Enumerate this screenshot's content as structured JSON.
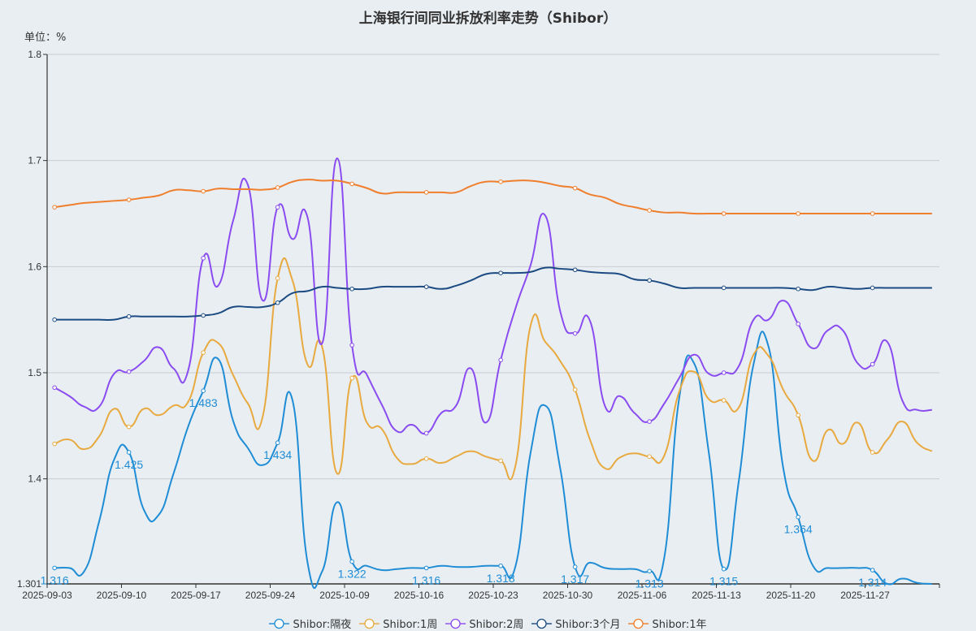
{
  "chart_data": {
    "type": "line",
    "title": "上海银行间同业拆放利率走势（Shibor）",
    "ylabel": "单位：%",
    "ylim": [
      1.301,
      1.8
    ],
    "yticks": [
      "1.301",
      "1.4",
      "1.5",
      "1.6",
      "1.7",
      "1.8"
    ],
    "xtick_labels": [
      "2025-09-03",
      "2025-09-10",
      "2025-09-17",
      "2025-09-24",
      "2025-10-09",
      "2025-10-16",
      "2025-10-23",
      "2025-10-30",
      "2025-11-06",
      "2025-11-13",
      "2025-11-20",
      "2025-11-27"
    ],
    "smooth": true,
    "grid": "horizontal",
    "legend": "bottom",
    "categories": [
      "2025-09-03",
      "2025-09-04",
      "2025-09-05",
      "2025-09-08",
      "2025-09-09",
      "2025-09-10",
      "2025-09-11",
      "2025-09-12",
      "2025-09-15",
      "2025-09-16",
      "2025-09-17",
      "2025-09-18",
      "2025-09-19",
      "2025-09-22",
      "2025-09-23",
      "2025-09-24",
      "2025-09-25",
      "2025-09-26",
      "2025-09-29",
      "2025-09-30",
      "2025-10-09",
      "2025-10-10",
      "2025-10-13",
      "2025-10-14",
      "2025-10-15",
      "2025-10-16",
      "2025-10-17",
      "2025-10-20",
      "2025-10-21",
      "2025-10-22",
      "2025-10-23",
      "2025-10-24",
      "2025-10-27",
      "2025-10-28",
      "2025-10-29",
      "2025-10-30",
      "2025-10-31",
      "2025-11-03",
      "2025-11-04",
      "2025-11-05",
      "2025-11-06",
      "2025-11-07",
      "2025-11-10",
      "2025-11-11",
      "2025-11-12",
      "2025-11-13",
      "2025-11-14",
      "2025-11-17",
      "2025-11-18",
      "2025-11-19",
      "2025-11-20",
      "2025-11-21",
      "2025-11-24",
      "2025-11-25",
      "2025-11-26",
      "2025-11-27",
      "2025-11-28",
      "2025-12-01",
      "2025-12-02",
      "2025-12-03"
    ],
    "series": [
      {
        "name": "Shibor:隔夜",
        "color": "#1f8dd6",
        "labels_shown": true,
        "values": [
          1.316,
          1.316,
          1.313,
          1.36,
          1.418,
          1.425,
          1.371,
          1.366,
          1.405,
          1.45,
          1.483,
          1.513,
          1.455,
          1.429,
          1.413,
          1.434,
          1.474,
          1.322,
          1.313,
          1.378,
          1.322,
          1.318,
          1.314,
          1.315,
          1.316,
          1.316,
          1.318,
          1.317,
          1.317,
          1.318,
          1.318,
          1.318,
          1.424,
          1.469,
          1.41,
          1.317,
          1.321,
          1.316,
          1.315,
          1.315,
          1.313,
          1.326,
          1.476,
          1.509,
          1.424,
          1.315,
          1.397,
          1.508,
          1.525,
          1.41,
          1.364,
          1.318,
          1.316,
          1.316,
          1.316,
          1.314,
          1.301,
          1.306,
          1.302,
          1.301
        ]
      },
      {
        "name": "Shibor:1周",
        "color": "#e8a93f",
        "values": [
          1.433,
          1.437,
          1.428,
          1.44,
          1.466,
          1.449,
          1.466,
          1.46,
          1.469,
          1.473,
          1.519,
          1.528,
          1.498,
          1.471,
          1.459,
          1.589,
          1.587,
          1.508,
          1.524,
          1.405,
          1.495,
          1.453,
          1.447,
          1.42,
          1.414,
          1.419,
          1.415,
          1.421,
          1.426,
          1.421,
          1.417,
          1.413,
          1.544,
          1.529,
          1.511,
          1.484,
          1.437,
          1.41,
          1.42,
          1.424,
          1.421,
          1.422,
          1.482,
          1.501,
          1.475,
          1.474,
          1.467,
          1.517,
          1.516,
          1.484,
          1.46,
          1.417,
          1.446,
          1.433,
          1.453,
          1.425,
          1.437,
          1.454,
          1.434,
          1.426
        ]
      },
      {
        "name": "Shibor:2周",
        "color": "#8a4cf0",
        "values": [
          1.486,
          1.478,
          1.468,
          1.468,
          1.499,
          1.501,
          1.511,
          1.524,
          1.504,
          1.503,
          1.608,
          1.582,
          1.643,
          1.677,
          1.568,
          1.656,
          1.626,
          1.647,
          1.528,
          1.702,
          1.526,
          1.498,
          1.47,
          1.445,
          1.451,
          1.443,
          1.462,
          1.469,
          1.504,
          1.453,
          1.512,
          1.561,
          1.601,
          1.648,
          1.558,
          1.537,
          1.549,
          1.469,
          1.478,
          1.462,
          1.454,
          1.471,
          1.495,
          1.517,
          1.499,
          1.5,
          1.506,
          1.55,
          1.55,
          1.568,
          1.546,
          1.523,
          1.54,
          1.54,
          1.509,
          1.508,
          1.529,
          1.474,
          1.465,
          1.465
        ]
      },
      {
        "name": "Shibor:3个月",
        "color": "#1b4b82",
        "values": [
          1.55,
          1.55,
          1.55,
          1.55,
          1.55,
          1.553,
          1.553,
          1.553,
          1.553,
          1.553,
          1.554,
          1.556,
          1.562,
          1.562,
          1.562,
          1.566,
          1.575,
          1.577,
          1.581,
          1.58,
          1.579,
          1.579,
          1.581,
          1.581,
          1.581,
          1.581,
          1.579,
          1.582,
          1.587,
          1.593,
          1.594,
          1.594,
          1.595,
          1.599,
          1.598,
          1.597,
          1.595,
          1.594,
          1.593,
          1.588,
          1.587,
          1.584,
          1.58,
          1.58,
          1.58,
          1.58,
          1.58,
          1.58,
          1.58,
          1.58,
          1.579,
          1.578,
          1.581,
          1.58,
          1.579,
          1.58,
          1.58,
          1.58,
          1.58,
          1.58
        ]
      },
      {
        "name": "Shibor:1年",
        "color": "#f07f2d",
        "values": [
          1.656,
          1.658,
          1.66,
          1.661,
          1.662,
          1.663,
          1.665,
          1.667,
          1.672,
          1.672,
          1.671,
          1.6735,
          1.673,
          1.673,
          1.6725,
          1.6745,
          1.68,
          1.682,
          1.681,
          1.681,
          1.678,
          1.674,
          1.669,
          1.67,
          1.67,
          1.67,
          1.67,
          1.67,
          1.676,
          1.68,
          1.68,
          1.681,
          1.681,
          1.679,
          1.676,
          1.674,
          1.668,
          1.665,
          1.659,
          1.656,
          1.653,
          1.651,
          1.651,
          1.65,
          1.65,
          1.65,
          1.65,
          1.65,
          1.65,
          1.65,
          1.65,
          1.65,
          1.65,
          1.65,
          1.65,
          1.65,
          1.65,
          1.65,
          1.65,
          1.65
        ]
      }
    ]
  }
}
